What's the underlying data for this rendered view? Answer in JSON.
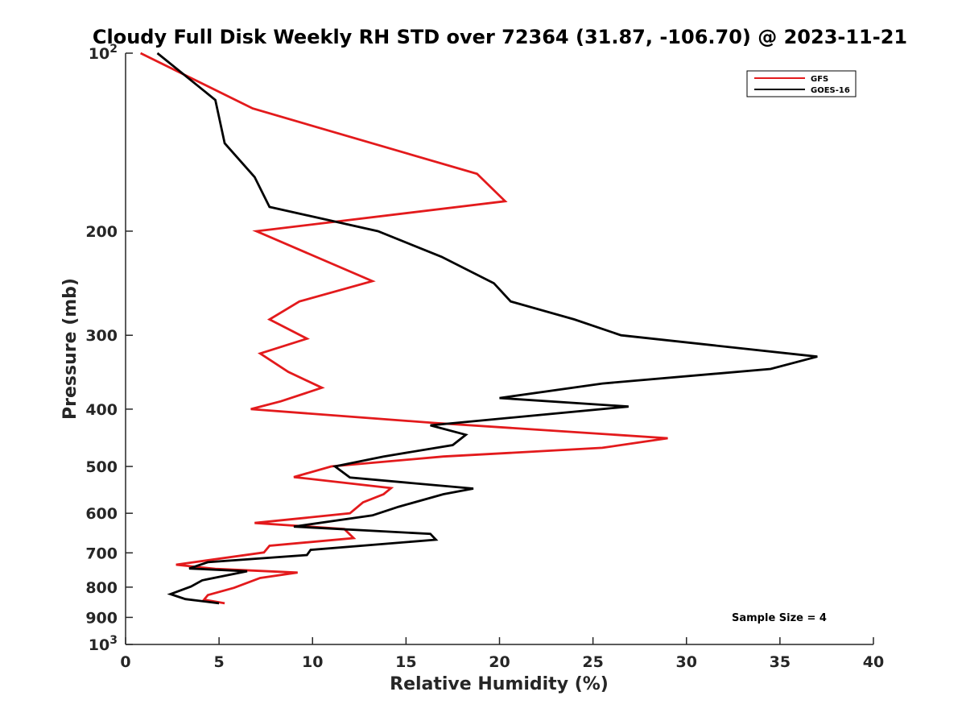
{
  "chart_data": {
    "type": "line",
    "title": "Cloudy Full Disk Weekly RH STD over 72364 (31.87, -106.70) @ 2023-11-21",
    "xlabel": "Relative Humidity (%)",
    "ylabel": "Pressure (mb)",
    "xlim": [
      0,
      40
    ],
    "ylim": [
      100,
      1000
    ],
    "y_scale": "log",
    "y_reversed": true,
    "grid": false,
    "x_ticks": [
      "0",
      "5",
      "10",
      "15",
      "20",
      "25",
      "30",
      "35",
      "40"
    ],
    "y_ticks": [
      {
        "value": 100,
        "base": "10",
        "exp": "2"
      },
      {
        "value": 200,
        "base": "200",
        "exp": ""
      },
      {
        "value": 300,
        "base": "300",
        "exp": ""
      },
      {
        "value": 400,
        "base": "400",
        "exp": ""
      },
      {
        "value": 500,
        "base": "500",
        "exp": ""
      },
      {
        "value": 600,
        "base": "600",
        "exp": ""
      },
      {
        "value": 700,
        "base": "700",
        "exp": ""
      },
      {
        "value": 800,
        "base": "800",
        "exp": ""
      },
      {
        "value": 900,
        "base": "900",
        "exp": ""
      },
      {
        "value": 1000,
        "base": "10",
        "exp": "3"
      }
    ],
    "legend_position": "top-right",
    "annotation": "Sample Size = 4",
    "series": [
      {
        "name": "GFS",
        "color": "#e31a1c",
        "points": [
          [
            0.8,
            100
          ],
          [
            6.8,
            124
          ],
          [
            18.8,
            160
          ],
          [
            20.3,
            178
          ],
          [
            7.0,
            200
          ],
          [
            13.2,
            243
          ],
          [
            9.3,
            263
          ],
          [
            7.7,
            282
          ],
          [
            9.7,
            304
          ],
          [
            7.2,
            322
          ],
          [
            8.7,
            346
          ],
          [
            10.5,
            368
          ],
          [
            8.3,
            388
          ],
          [
            6.7,
            400
          ],
          [
            16.5,
            422
          ],
          [
            29.0,
            448
          ],
          [
            25.5,
            465
          ],
          [
            17.0,
            481
          ],
          [
            11.0,
            500
          ],
          [
            9.0,
            521
          ],
          [
            14.2,
            544
          ],
          [
            13.8,
            557
          ],
          [
            12.7,
            575
          ],
          [
            12.0,
            600
          ],
          [
            6.9,
            623
          ],
          [
            11.7,
            638
          ],
          [
            12.2,
            661
          ],
          [
            7.7,
            681
          ],
          [
            7.4,
            699
          ],
          [
            2.7,
            733
          ],
          [
            4.8,
            745
          ],
          [
            9.2,
            756
          ],
          [
            7.2,
            772
          ],
          [
            5.8,
            802
          ],
          [
            4.4,
            825
          ],
          [
            4.2,
            840
          ],
          [
            5.3,
            852
          ]
        ]
      },
      {
        "name": "GOES-16",
        "color": "#000000",
        "points": [
          [
            1.7,
            100
          ],
          [
            4.8,
            120
          ],
          [
            5.3,
            142
          ],
          [
            6.9,
            162
          ],
          [
            7.7,
            182
          ],
          [
            13.5,
            200
          ],
          [
            16.9,
            221
          ],
          [
            19.7,
            245
          ],
          [
            20.6,
            263
          ],
          [
            24.0,
            282
          ],
          [
            26.5,
            300
          ],
          [
            37.0,
            326
          ],
          [
            34.5,
            342
          ],
          [
            25.5,
            362
          ],
          [
            20.0,
            383
          ],
          [
            26.9,
            396
          ],
          [
            16.3,
            426
          ],
          [
            18.2,
            442
          ],
          [
            17.5,
            460
          ],
          [
            13.8,
            481
          ],
          [
            11.2,
            500
          ],
          [
            12.0,
            522
          ],
          [
            18.6,
            545
          ],
          [
            17.0,
            557
          ],
          [
            14.6,
            585
          ],
          [
            13.2,
            605
          ],
          [
            9.0,
            632
          ],
          [
            16.3,
            650
          ],
          [
            16.6,
            665
          ],
          [
            9.9,
            692
          ],
          [
            9.7,
            706
          ],
          [
            4.4,
            726
          ],
          [
            3.4,
            744
          ],
          [
            6.5,
            752
          ],
          [
            4.1,
            779
          ],
          [
            3.5,
            798
          ],
          [
            2.4,
            822
          ],
          [
            3.2,
            838
          ],
          [
            5.0,
            852
          ]
        ]
      }
    ]
  }
}
